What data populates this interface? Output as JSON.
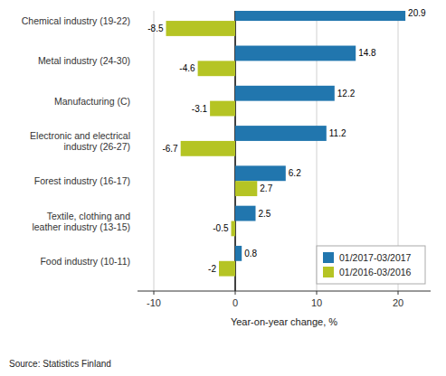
{
  "chart_data": {
    "type": "bar",
    "orientation": "horizontal",
    "categories": [
      "Chemical industry (19-22)",
      "Metal industry (24-30)",
      "Manufacturing (C)",
      "Electronic and electrical\nindustry (26-27)",
      "Forest industry (16-17)",
      "Textile, clothing and\nleather industry (13-15)",
      "Food industry (10-11)"
    ],
    "series": [
      {
        "name": "01/2017-03/2017",
        "color": "#2176ae",
        "values": [
          20.9,
          14.8,
          12.2,
          11.2,
          6.2,
          2.5,
          0.8
        ]
      },
      {
        "name": "01/2016-03/2016",
        "color": "#b5c424",
        "values": [
          -8.5,
          -4.6,
          -3.1,
          -6.7,
          2.7,
          -0.5,
          -2.0
        ]
      }
    ],
    "x_label": "Year-on-year change, %",
    "xlim": [
      -12,
      24
    ],
    "xticks": [
      -10,
      0,
      10,
      20
    ],
    "grid": true,
    "legend": "lower right",
    "data_labels": true,
    "annotations": [
      "Source: Statistics Finland"
    ]
  }
}
